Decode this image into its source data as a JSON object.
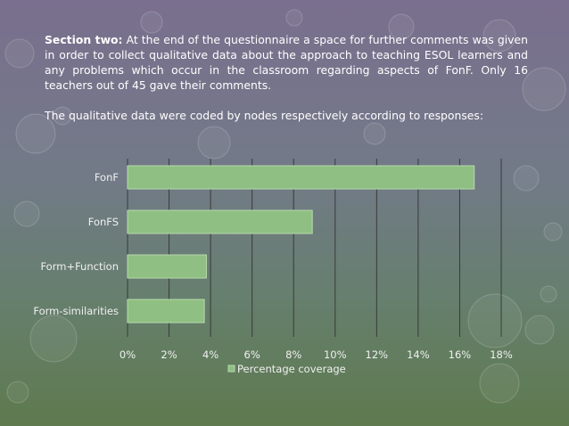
{
  "slide": {
    "section_label": "Section two:",
    "section_text": "At the end of the questionnaire a space for further comments was given in order to collect qualitative data about the approach to teaching ESOL learners and any problems which occur in the classroom regarding aspects of FonF. Only 16 teachers out of 45 gave their comments.",
    "coding_text": "The qualitative data were coded by nodes respectively according to responses:"
  },
  "chart_data": {
    "type": "bar",
    "orientation": "horizontal",
    "categories": [
      "FonF",
      "FonFS",
      "Form+Function",
      "Form-similarities"
    ],
    "series": [
      {
        "name": "Percentage coverage",
        "values": [
          16.7,
          8.9,
          3.8,
          3.7
        ]
      }
    ],
    "xlim": [
      0,
      18
    ],
    "x_ticks": [
      "0%",
      "2%",
      "4%",
      "6%",
      "8%",
      "10%",
      "12%",
      "14%",
      "16%",
      "18%"
    ],
    "grid": true,
    "legend": "bottom",
    "colors": {
      "bar": "#8fbf82",
      "bar_edge": "#b7d8ac",
      "grid": "#3a3a3a"
    }
  }
}
